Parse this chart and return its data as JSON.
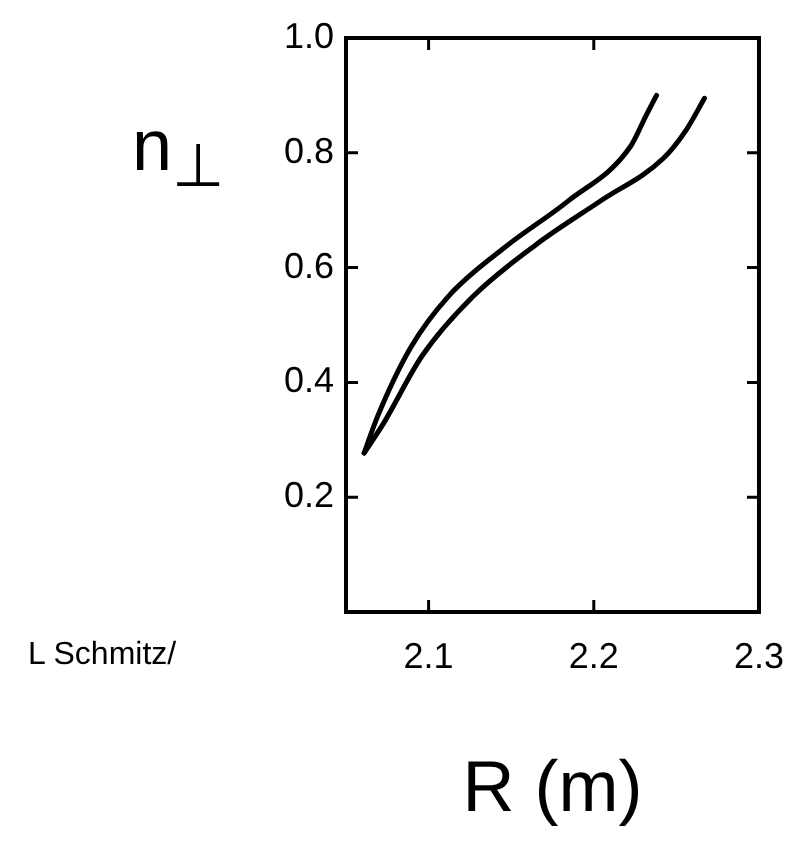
{
  "chart_data": {
    "type": "line",
    "xlabel": "R (m)",
    "ylabel": "n$_{⊥}$",
    "annotations": [
      "L Schmitz/"
    ],
    "xlim": [
      2.05,
      2.3
    ],
    "xticks": [
      2.1,
      2.2,
      2.3
    ],
    "ylim": [
      0,
      1
    ],
    "yticks": [
      0.2,
      0.4,
      0.6,
      0.8,
      {
        "value": 1,
        "label": "1.0"
      }
    ],
    "grid": false,
    "legend": false,
    "marker": "none",
    "line_style": "solid",
    "series": [
      {
        "color": "#000000",
        "x": [
          2.061,
          2.069,
          2.089,
          2.112,
          2.146,
          2.184,
          2.222,
          2.232,
          2.238
        ],
        "values": [
          0.277,
          0.34,
          0.46,
          0.55,
          0.635,
          0.715,
          0.81,
          0.867,
          0.9
        ]
      },
      {
        "color": "#000000",
        "x": [
          2.061,
          2.073,
          2.096,
          2.127,
          2.165,
          2.204,
          2.242,
          2.256,
          2.267
        ],
        "values": [
          0.277,
          0.33,
          0.446,
          0.55,
          0.64,
          0.716,
          0.79,
          0.84,
          0.895
        ]
      }
    ]
  }
}
